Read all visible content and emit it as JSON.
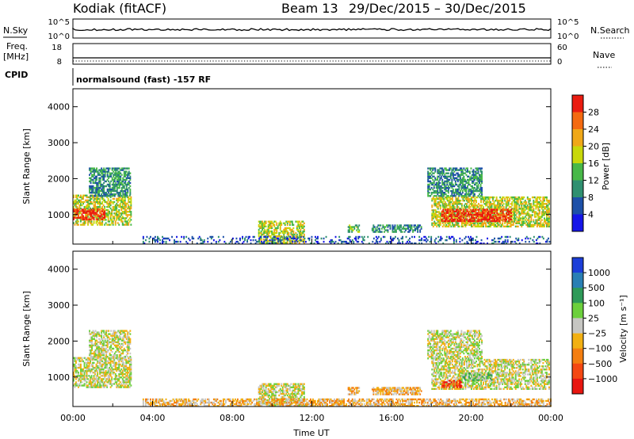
{
  "header": {
    "station": "Kodiak (fitACF)",
    "beam_label": "Beam 13",
    "date_range": "29/Dec/2015 – 30/Dec/2015"
  },
  "top_panels": {
    "nsky_label": "N.Sky",
    "nsky_ticks": [
      "10^5",
      "10^0"
    ],
    "nsearch_label": "N.Search",
    "nsearch_ticks": [
      "10^5",
      "10^0"
    ],
    "freq_label_line1": "Freq.",
    "freq_label_line2": "[MHz]",
    "freq_ticks": [
      "18",
      "8"
    ],
    "nave_label": "Nave",
    "nave_ticks": [
      "60",
      "0"
    ],
    "cpid_label": "CPID",
    "cpid_text": "normalsound (fast) -157 RF"
  },
  "chart_data": [
    {
      "type": "heatmap",
      "name": "power",
      "xlabel": "",
      "ylabel": "Slant Range [km]",
      "colorbar_label": "Power [dB]",
      "xlim": [
        0,
        24
      ],
      "ylim": [
        180,
        4500
      ],
      "yticks": [
        1000,
        2000,
        3000,
        4000
      ],
      "colorbar": {
        "ticks": [
          "4",
          "8",
          "12",
          "16",
          "20",
          "24",
          "28"
        ],
        "colors": [
          "#1515e8",
          "#1d50a8",
          "#2f9070",
          "#48b848",
          "#c8d80a",
          "#f0a818",
          "#f46a10",
          "#ea1c10"
        ]
      },
      "regions": [
        {
          "t": [
            0.0,
            2.9
          ],
          "r": [
            700,
            1550
          ],
          "level": 4
        },
        {
          "t": [
            0.0,
            1.6
          ],
          "r": [
            850,
            1150
          ],
          "level": 7
        },
        {
          "t": [
            0.8,
            2.9
          ],
          "r": [
            1500,
            2300
          ],
          "level": 2
        },
        {
          "t": [
            9.3,
            11.6
          ],
          "r": [
            200,
            800
          ],
          "level": 4
        },
        {
          "t": [
            13.8,
            14.4
          ],
          "r": [
            500,
            700
          ],
          "level": 3
        },
        {
          "t": [
            15.0,
            17.5
          ],
          "r": [
            500,
            700
          ],
          "level": 2
        },
        {
          "t": [
            18.0,
            23.9
          ],
          "r": [
            650,
            1500
          ],
          "level": 4
        },
        {
          "t": [
            18.5,
            22.0
          ],
          "r": [
            800,
            1150
          ],
          "level": 7
        },
        {
          "t": [
            17.8,
            20.5
          ],
          "r": [
            1500,
            2300
          ],
          "level": 2
        },
        {
          "t": [
            3.5,
            24.0
          ],
          "r": [
            180,
            400
          ],
          "level": 1
        }
      ]
    },
    {
      "type": "heatmap",
      "name": "velocity",
      "xlabel": "Time UT",
      "ylabel": "Slant Range [km]",
      "colorbar_label": "Velocity [m s⁻¹]",
      "xlim": [
        0,
        24
      ],
      "ylim": [
        180,
        4500
      ],
      "yticks": [
        1000,
        2000,
        3000,
        4000
      ],
      "xticks": [
        "00:00",
        "04:00",
        "08:00",
        "12:00",
        "16:00",
        "20:00",
        "00:00"
      ],
      "colorbar": {
        "ticks": [
          "1000",
          "500",
          "100",
          "25",
          "−25",
          "−100",
          "−500",
          "−1000"
        ],
        "colors": [
          "#1c3ed8",
          "#2a7fb4",
          "#2e9a58",
          "#6cd03c",
          "#c6c6c2",
          "#f2b012",
          "#f47e10",
          "#f44812",
          "#e81610"
        ]
      },
      "regions": [
        {
          "t": [
            0.0,
            2.9
          ],
          "r": [
            700,
            1550
          ],
          "level": 4
        },
        {
          "t": [
            0.8,
            2.9
          ],
          "r": [
            1500,
            2300
          ],
          "level": 4
        },
        {
          "t": [
            9.3,
            11.6
          ],
          "r": [
            200,
            800
          ],
          "level": 4
        },
        {
          "t": [
            13.8,
            14.4
          ],
          "r": [
            500,
            700
          ],
          "level": 5
        },
        {
          "t": [
            15.0,
            17.5
          ],
          "r": [
            500,
            700
          ],
          "level": 5
        },
        {
          "t": [
            18.0,
            23.9
          ],
          "r": [
            650,
            1500
          ],
          "level": 4
        },
        {
          "t": [
            17.8,
            20.5
          ],
          "r": [
            1500,
            2300
          ],
          "level": 4
        },
        {
          "t": [
            18.5,
            19.5
          ],
          "r": [
            700,
            900
          ],
          "level": 7
        },
        {
          "t": [
            19.5,
            21.0
          ],
          "r": [
            900,
            1100
          ],
          "level": 3
        },
        {
          "t": [
            3.5,
            24.0
          ],
          "r": [
            180,
            400
          ],
          "level": 5
        }
      ]
    }
  ]
}
